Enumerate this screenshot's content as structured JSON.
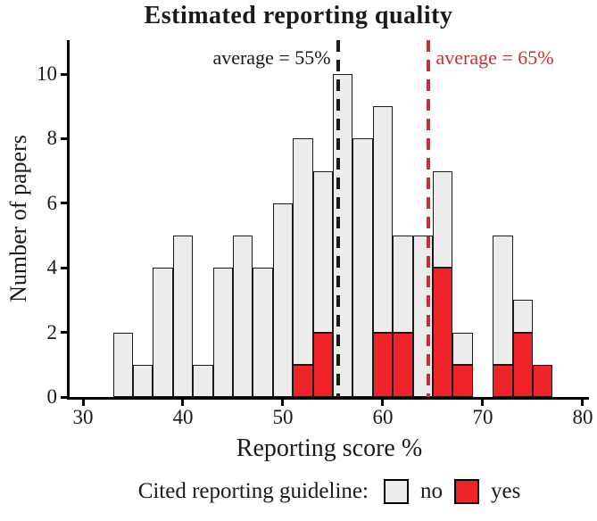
{
  "title": "Estimated reporting quality",
  "legend": {
    "title": "Cited reporting guideline:",
    "items": [
      {
        "label": "no",
        "color": "#ececec"
      },
      {
        "label": "yes",
        "color": "#ee2428"
      }
    ]
  },
  "chart_data": {
    "type": "bar",
    "subtype": "stacked_histogram",
    "title": "Estimated reporting quality",
    "xlabel": "Reporting score %",
    "ylabel": "Number of papers",
    "x_ticks": [
      30,
      40,
      50,
      60,
      70,
      80
    ],
    "y_ticks": [
      0,
      2,
      4,
      6,
      8,
      10
    ],
    "xlim": [
      28.66,
      80.63
    ],
    "ylim": [
      0,
      11.05
    ],
    "grid": "off",
    "legend_position": "bottom",
    "bin_width": 2,
    "bin_starts": [
      33,
      35,
      37,
      39,
      41,
      43,
      45,
      47,
      49,
      51,
      53,
      55,
      57,
      59,
      61,
      63,
      65,
      67,
      69,
      71,
      73,
      75
    ],
    "series": [
      {
        "name": "yes",
        "color": "#ee2428",
        "values": [
          0,
          0,
          0,
          0,
          0,
          0,
          0,
          0,
          0,
          1,
          2,
          0,
          0,
          2,
          2,
          0,
          4,
          1,
          0,
          1,
          2,
          1
        ]
      },
      {
        "name": "no",
        "color": "#ececec",
        "values": [
          2,
          1,
          4,
          5,
          1,
          4,
          5,
          4,
          6,
          7,
          5,
          10,
          8,
          7,
          3,
          5,
          3,
          1,
          0,
          4,
          1,
          0
        ]
      }
    ],
    "totals": [
      2,
      1,
      4,
      5,
      1,
      4,
      5,
      4,
      6,
      8,
      7,
      10,
      8,
      9,
      5,
      5,
      7,
      2,
      0,
      5,
      3,
      1
    ],
    "vlines": [
      {
        "label": "average = 55%",
        "x": 55.5,
        "color": "#1a1a1a",
        "side": "left"
      },
      {
        "label": "average = 65%",
        "x": 64.6,
        "color": "#c4303a",
        "side": "right"
      }
    ]
  }
}
